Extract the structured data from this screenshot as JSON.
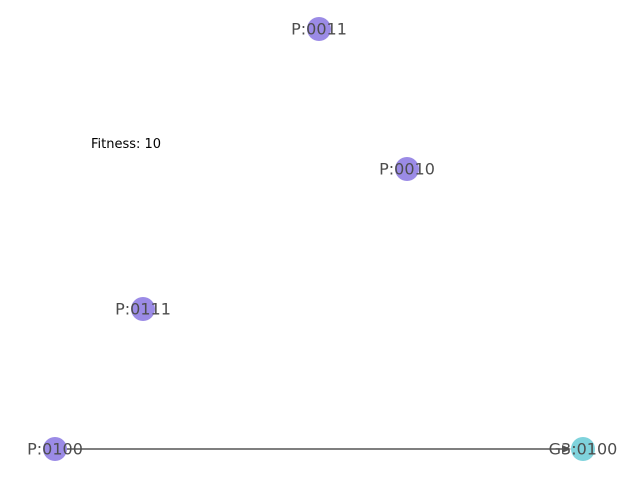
{
  "graph": {
    "annotation": "Fitness: 10",
    "nodes": [
      {
        "id": "p0011",
        "label": "P:0011",
        "color": "#9b8be6"
      },
      {
        "id": "p0010",
        "label": "P:0010",
        "color": "#9b8be6"
      },
      {
        "id": "p0111",
        "label": "P:0111",
        "color": "#9b8be6"
      },
      {
        "id": "p0100",
        "label": "P:0100",
        "color": "#9b8be6"
      },
      {
        "id": "g3_0100",
        "label": "G3:0100",
        "color": "#7fd3dc"
      }
    ],
    "edges": [
      {
        "from": "p0100",
        "to": "g3_0100",
        "directed": true,
        "color": "#555555"
      }
    ]
  }
}
